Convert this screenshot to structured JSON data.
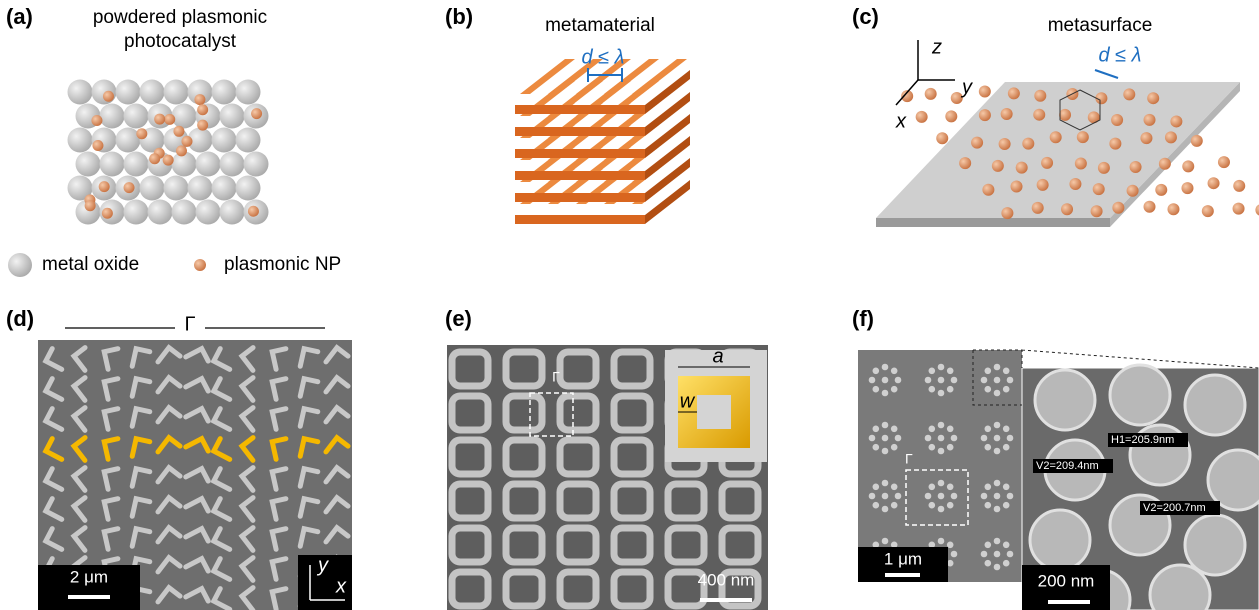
{
  "panels": [
    {
      "label": "(a)",
      "title": [
        "powdered plasmonic",
        "photocatalyst"
      ]
    },
    {
      "label": "(b)",
      "title": [
        "metamaterial"
      ],
      "spacing": "d ≤ λ"
    },
    {
      "label": "(c)",
      "title": [
        "metasurface"
      ],
      "spacing": "d ≤ λ",
      "axes": [
        "z",
        "y",
        "x"
      ]
    },
    {
      "label": "(d)",
      "period": "Γ",
      "scale_bar": "2 μm",
      "axes": [
        "y",
        "x"
      ]
    },
    {
      "label": "(e)",
      "period": "Γ",
      "inset": [
        "a",
        "w"
      ],
      "scale_bar": "400 nm"
    },
    {
      "label": "(f)",
      "period": "Γ",
      "scale_bar": "1 μm",
      "zoom_scale_bar": "200 nm",
      "measurements": [
        "H1=205.9nm",
        "V2=209.4nm",
        "V2=200.7nm"
      ]
    }
  ],
  "legend": [
    "metal oxide",
    "plasmonic NP"
  ]
}
